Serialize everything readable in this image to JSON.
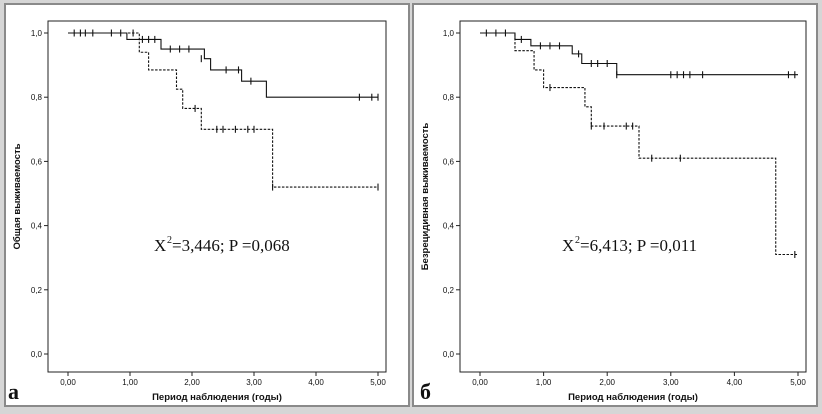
{
  "chart_data": [
    {
      "type": "line",
      "panel_label": "а",
      "xlabel": "Период наблюдения (годы)",
      "ylabel": "Общая выживаемость",
      "xlim": [
        0,
        5
      ],
      "ylim": [
        0,
        1
      ],
      "x_ticks": [
        "0,00",
        "1,00",
        "2,00",
        "3,00",
        "4,00",
        "5,00"
      ],
      "y_ticks": [
        "0,0",
        "0,2",
        "0,4",
        "0,6",
        "0,8",
        "1,0"
      ],
      "stat": {
        "chi_symbol": "X",
        "chi_power": "2",
        "text": "=3,446; P =0,068"
      },
      "series": [
        {
          "style": "solid",
          "steps": [
            [
              0.0,
              1.0
            ],
            [
              0.95,
              0.98
            ],
            [
              1.5,
              0.95
            ],
            [
              2.2,
              0.92
            ],
            [
              2.3,
              0.885
            ],
            [
              2.8,
              0.85
            ],
            [
              3.2,
              0.8
            ],
            [
              5.0,
              0.8
            ]
          ],
          "censored": [
            [
              0.1,
              1.0
            ],
            [
              0.2,
              1.0
            ],
            [
              0.28,
              1.0
            ],
            [
              0.4,
              1.0
            ],
            [
              0.7,
              1.0
            ],
            [
              0.85,
              1.0
            ],
            [
              1.2,
              0.98
            ],
            [
              1.3,
              0.98
            ],
            [
              1.4,
              0.98
            ],
            [
              1.65,
              0.95
            ],
            [
              1.8,
              0.95
            ],
            [
              1.95,
              0.95
            ],
            [
              2.15,
              0.92
            ],
            [
              2.55,
              0.885
            ],
            [
              2.75,
              0.885
            ],
            [
              2.95,
              0.85
            ],
            [
              4.7,
              0.8
            ],
            [
              4.9,
              0.8
            ],
            [
              5.0,
              0.8
            ]
          ]
        },
        {
          "style": "dashed",
          "steps": [
            [
              0.0,
              1.0
            ],
            [
              1.15,
              0.94
            ],
            [
              1.3,
              0.885
            ],
            [
              1.75,
              0.825
            ],
            [
              1.85,
              0.765
            ],
            [
              2.15,
              0.7
            ],
            [
              3.3,
              0.52
            ],
            [
              5.0,
              0.52
            ]
          ],
          "censored": [
            [
              1.05,
              1.0
            ],
            [
              2.05,
              0.765
            ],
            [
              2.4,
              0.7
            ],
            [
              2.5,
              0.7
            ],
            [
              2.7,
              0.7
            ],
            [
              2.9,
              0.7
            ],
            [
              3.0,
              0.7
            ],
            [
              3.3,
              0.52
            ],
            [
              5.0,
              0.52
            ]
          ]
        }
      ]
    },
    {
      "type": "line",
      "panel_label": "б",
      "xlabel": "Период наблюдения (годы)",
      "ylabel": "Безрецидивная выживаемость",
      "xlim": [
        0,
        5
      ],
      "ylim": [
        0,
        1
      ],
      "x_ticks": [
        "0,00",
        "1,00",
        "2,00",
        "3,00",
        "4,00",
        "5,00"
      ],
      "y_ticks": [
        "0,0",
        "0,2",
        "0,4",
        "0,6",
        "0,8",
        "1,0"
      ],
      "stat": {
        "chi_symbol": "X",
        "chi_power": "2",
        "text": "=6,413; P =0,011"
      },
      "series": [
        {
          "style": "solid",
          "steps": [
            [
              0.0,
              1.0
            ],
            [
              0.55,
              0.98
            ],
            [
              0.8,
              0.96
            ],
            [
              1.45,
              0.935
            ],
            [
              1.6,
              0.905
            ],
            [
              2.15,
              0.87
            ],
            [
              5.0,
              0.87
            ]
          ],
          "censored": [
            [
              0.1,
              1.0
            ],
            [
              0.25,
              1.0
            ],
            [
              0.4,
              1.0
            ],
            [
              0.65,
              0.98
            ],
            [
              0.95,
              0.96
            ],
            [
              1.1,
              0.96
            ],
            [
              1.25,
              0.96
            ],
            [
              1.55,
              0.935
            ],
            [
              1.75,
              0.905
            ],
            [
              1.85,
              0.905
            ],
            [
              2.0,
              0.905
            ],
            [
              2.15,
              0.87
            ],
            [
              3.0,
              0.87
            ],
            [
              3.1,
              0.87
            ],
            [
              3.2,
              0.87
            ],
            [
              3.3,
              0.87
            ],
            [
              3.5,
              0.87
            ],
            [
              4.85,
              0.87
            ],
            [
              4.95,
              0.87
            ]
          ]
        },
        {
          "style": "dashed",
          "steps": [
            [
              0.0,
              1.0
            ],
            [
              0.55,
              0.945
            ],
            [
              0.85,
              0.885
            ],
            [
              1.0,
              0.83
            ],
            [
              1.65,
              0.77
            ],
            [
              1.75,
              0.71
            ],
            [
              2.5,
              0.61
            ],
            [
              4.65,
              0.31
            ],
            [
              5.0,
              0.31
            ]
          ],
          "censored": [
            [
              1.1,
              0.83
            ],
            [
              1.75,
              0.71
            ],
            [
              1.95,
              0.71
            ],
            [
              2.3,
              0.71
            ],
            [
              2.4,
              0.71
            ],
            [
              2.7,
              0.61
            ],
            [
              3.15,
              0.61
            ],
            [
              4.95,
              0.31
            ]
          ]
        }
      ]
    }
  ]
}
